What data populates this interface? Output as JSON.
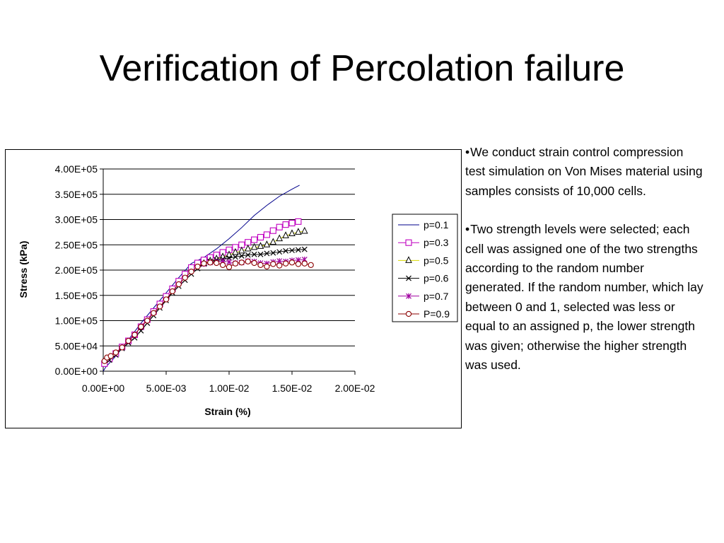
{
  "slide": {
    "title": "Verification of Percolation failure"
  },
  "notes": {
    "bullet_char": "•",
    "paragraphs": [
      "We conduct strain control compression test simulation on Von Mises material using samples consists of 10,000 cells.",
      "Two strength levels were selected; each cell was assigned one of the two strengths according to the random number generated. If the random number, which lay between 0 and 1, selected was less or equal to an assigned p, the lower strength was given; otherwise the higher strength was used."
    ]
  },
  "chart_data": {
    "type": "line",
    "title": "",
    "xlabel": "Strain (%)",
    "ylabel": "Stress (kPa)",
    "xlim": [
      0,
      0.02
    ],
    "ylim": [
      0,
      400000
    ],
    "x_ticks": [
      "0.00E+00",
      "5.00E-03",
      "1.00E-02",
      "1.50E-02",
      "2.00E-02"
    ],
    "y_ticks": [
      "0.00E+00",
      "5.00E+04",
      "1.00E+05",
      "1.50E+05",
      "2.00E+05",
      "2.50E+05",
      "3.00E+05",
      "3.50E+05",
      "4.00E+05"
    ],
    "grid": "horizontal major gridlines",
    "legend_position": "right",
    "series": [
      {
        "name": "p=0.1",
        "color": "#00008B",
        "marker": "none",
        "x": [
          0,
          0.0002,
          0.001,
          0.002,
          0.003,
          0.004,
          0.005,
          0.006,
          0.007,
          0.008,
          0.009,
          0.01,
          0.011,
          0.012,
          0.013,
          0.014,
          0.015,
          0.0156
        ],
        "y": [
          0,
          8000,
          30000,
          62000,
          95000,
          125000,
          155000,
          185000,
          213000,
          225000,
          242000,
          262000,
          284000,
          308000,
          328000,
          346000,
          360000,
          368000
        ]
      },
      {
        "name": "p=0.3",
        "color": "#C000C0",
        "marker": "square",
        "x": [
          0.0001,
          0.0005,
          0.001,
          0.0015,
          0.002,
          0.0025,
          0.003,
          0.0035,
          0.004,
          0.0045,
          0.005,
          0.0055,
          0.006,
          0.0065,
          0.007,
          0.0075,
          0.008,
          0.0085,
          0.009,
          0.0095,
          0.01,
          0.0105,
          0.011,
          0.0115,
          0.012,
          0.0125,
          0.013,
          0.0135,
          0.014,
          0.0145,
          0.015,
          0.0155
        ],
        "y": [
          15000,
          25000,
          35000,
          48000,
          60000,
          72000,
          88000,
          102000,
          118000,
          133000,
          148000,
          163000,
          178000,
          192000,
          205000,
          214000,
          220000,
          225000,
          230000,
          235000,
          240000,
          245000,
          250000,
          255000,
          260000,
          265000,
          270000,
          278000,
          285000,
          290000,
          293000,
          296000
        ]
      },
      {
        "name": "p=0.5",
        "color": "#C8C800",
        "marker": "triangle",
        "x": [
          0.008,
          0.0085,
          0.009,
          0.0095,
          0.01,
          0.0105,
          0.011,
          0.0115,
          0.012,
          0.0125,
          0.013,
          0.0135,
          0.014,
          0.0145,
          0.015,
          0.0155,
          0.016
        ],
        "y": [
          213000,
          218000,
          222000,
          226000,
          230000,
          235000,
          238000,
          242000,
          245000,
          247000,
          250000,
          255000,
          262000,
          268000,
          272000,
          275000,
          277000
        ]
      },
      {
        "name": "p=0.6",
        "color": "#000000",
        "marker": "x",
        "x": [
          0.0005,
          0.001,
          0.0015,
          0.002,
          0.0025,
          0.003,
          0.0035,
          0.004,
          0.0045,
          0.005,
          0.0055,
          0.006,
          0.0065,
          0.007,
          0.0075,
          0.008,
          0.0085,
          0.009,
          0.0095,
          0.01,
          0.0105,
          0.011,
          0.0115,
          0.012,
          0.0125,
          0.013,
          0.0135,
          0.014,
          0.0145,
          0.015,
          0.0155,
          0.016
        ],
        "y": [
          22000,
          32000,
          45000,
          56000,
          66000,
          80000,
          95000,
          110000,
          125000,
          140000,
          155000,
          168000,
          180000,
          192000,
          203000,
          212000,
          217000,
          220000,
          222000,
          224000,
          226000,
          228000,
          230000,
          231000,
          231000,
          233000,
          234000,
          236000,
          238000,
          239000,
          240000,
          241000
        ]
      },
      {
        "name": "p=0.7",
        "color": "#A000A0",
        "marker": "star",
        "x": [
          0.008,
          0.0085,
          0.009,
          0.0095,
          0.01,
          0.0105,
          0.011,
          0.0115,
          0.012,
          0.0125,
          0.013,
          0.0135,
          0.014,
          0.0145,
          0.015,
          0.0155,
          0.016
        ],
        "y": [
          212000,
          215000,
          217000,
          218000,
          216000,
          214000,
          215000,
          218000,
          217000,
          214000,
          213000,
          216000,
          218000,
          217000,
          219000,
          220000,
          221000
        ]
      },
      {
        "name": "P=0.9",
        "color": "#8B0000",
        "marker": "circle",
        "x": [
          0.0001,
          0.0003,
          0.0006,
          0.001,
          0.0015,
          0.002,
          0.0025,
          0.003,
          0.0035,
          0.004,
          0.0045,
          0.005,
          0.0055,
          0.006,
          0.0065,
          0.007,
          0.0075,
          0.008,
          0.0085,
          0.009,
          0.0095,
          0.01,
          0.0105,
          0.011,
          0.0115,
          0.012,
          0.0125,
          0.013,
          0.0135,
          0.014,
          0.0145,
          0.015,
          0.0155,
          0.016,
          0.0165
        ],
        "y": [
          20000,
          27000,
          30000,
          37000,
          47000,
          60000,
          72000,
          88000,
          100000,
          115000,
          128000,
          142000,
          158000,
          172000,
          185000,
          197000,
          207000,
          213000,
          215000,
          214000,
          210000,
          206000,
          213000,
          215000,
          217000,
          214000,
          210000,
          207000,
          212000,
          209000,
          213000,
          215000,
          212000,
          213000,
          210000
        ]
      }
    ]
  }
}
